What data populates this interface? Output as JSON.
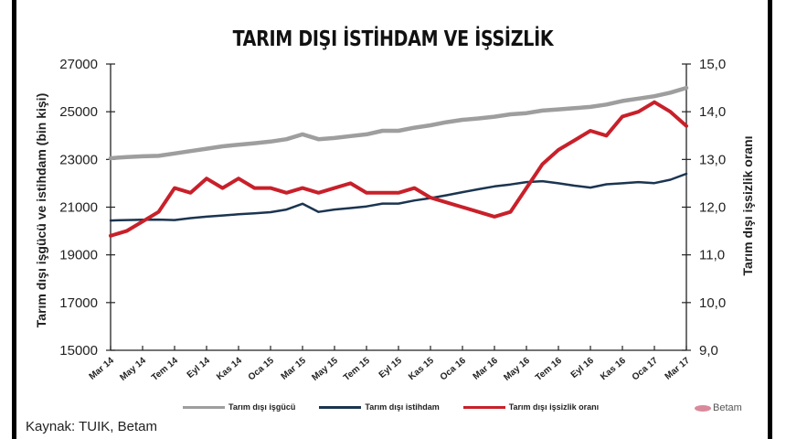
{
  "title": "TARIM DIŞI İSTİHDAM VE İŞSİZLİK",
  "source": "Kaynak: TUIK, Betam",
  "logo": "Betam",
  "legend": [
    {
      "label": "Tarım dışı işgücü",
      "color": "#9e9e9e"
    },
    {
      "label": "Tarım dışı istihdam",
      "color": "#1b3550"
    },
    {
      "label": "Tarım dışı işsizlik oranı",
      "color": "#c8202a"
    }
  ],
  "chart_data": {
    "type": "line",
    "title": "TARIM DIŞI İSTİHDAM VE İŞSİZLİK",
    "xlabel": "",
    "ylabel": "Tarım dışı işgücü ve istihdam (bin kişi)",
    "y2label": "Tarım dışı işsizlik oranı",
    "ylim": [
      15000,
      27000
    ],
    "y2lim": [
      9.0,
      15.0
    ],
    "yticks": [
      "15000",
      "17000",
      "19000",
      "21000",
      "23000",
      "25000",
      "27000"
    ],
    "y2ticks": [
      "9,0",
      "10,0",
      "11,0",
      "12,0",
      "13,0",
      "14,0",
      "15,0"
    ],
    "xtick_labels": [
      "Mar 14",
      "May 14",
      "Tem 14",
      "Eyl 14",
      "Kas 14",
      "Oca 15",
      "Mar 15",
      "May 15",
      "Tem 15",
      "Eyl 15",
      "Kas 15",
      "Oca 16",
      "Mar 16",
      "May 16",
      "Tem 16",
      "Eyl 16",
      "Kas 16",
      "Oca 17",
      "Mar 17"
    ],
    "x": [
      "Mar 14",
      "Nis 14",
      "May 14",
      "Haz 14",
      "Tem 14",
      "Ağu 14",
      "Eyl 14",
      "Eki 14",
      "Kas 14",
      "Ara 14",
      "Oca 15",
      "Şub 15",
      "Mar 15",
      "Nis 15",
      "May 15",
      "Haz 15",
      "Tem 15",
      "Ağu 15",
      "Eyl 15",
      "Eki 15",
      "Kas 15",
      "Ara 15",
      "Oca 16",
      "Şub 16",
      "Mar 16",
      "Nis 16",
      "May 16",
      "Haz 16",
      "Tem 16",
      "Ağu 16",
      "Eyl 16",
      "Eki 16",
      "Kas 16",
      "Ara 16",
      "Oca 17",
      "Şub 17",
      "Mar 17"
    ],
    "series": [
      {
        "name": "Tarım dışı işgücü",
        "axis": "left",
        "color": "#9e9e9e",
        "values": [
          23050,
          23100,
          23130,
          23150,
          23250,
          23350,
          23450,
          23550,
          23620,
          23680,
          23750,
          23850,
          24050,
          23850,
          23900,
          23980,
          24050,
          24200,
          24200,
          24330,
          24430,
          24560,
          24660,
          24720,
          24790,
          24890,
          24940,
          25050,
          25100,
          25150,
          25200,
          25300,
          25450,
          25550,
          25650,
          25800,
          26000
        ]
      },
      {
        "name": "Tarım dışı istihdam",
        "axis": "left",
        "color": "#1b3550",
        "values": [
          20440,
          20460,
          20470,
          20480,
          20460,
          20540,
          20600,
          20650,
          20700,
          20740,
          20790,
          20900,
          21140,
          20800,
          20900,
          20960,
          21030,
          21150,
          21150,
          21280,
          21380,
          21500,
          21630,
          21750,
          21870,
          21950,
          22050,
          22090,
          22000,
          21900,
          21820,
          21960,
          22000,
          22050,
          22010,
          22150,
          22400
        ]
      },
      {
        "name": "Tarım dışı işsizlik oranı",
        "axis": "right",
        "color": "#c8202a",
        "values": [
          11.4,
          11.5,
          11.7,
          11.9,
          12.4,
          12.3,
          12.6,
          12.4,
          12.6,
          12.4,
          12.4,
          12.3,
          12.4,
          12.3,
          12.4,
          12.5,
          12.3,
          12.3,
          12.3,
          12.4,
          12.2,
          12.1,
          12.0,
          11.9,
          11.8,
          11.9,
          12.4,
          12.9,
          13.2,
          13.4,
          13.6,
          13.5,
          13.9,
          14.0,
          14.2,
          14.0,
          13.7
        ]
      }
    ],
    "legend_position": "bottom",
    "grid": false
  }
}
